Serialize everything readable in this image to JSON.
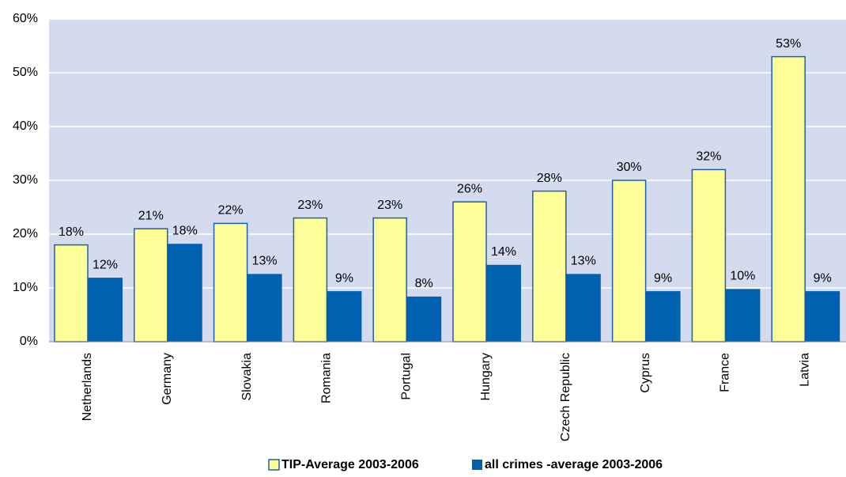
{
  "chart_data": {
    "type": "bar",
    "categories": [
      "Netherlands",
      "Germany",
      "Slovakia",
      "Romania",
      "Portugal",
      "Hungary",
      "Czech Republic",
      "Cyprus",
      "France",
      "Latvia"
    ],
    "series": [
      {
        "name": "TIP-Average 2003-2006",
        "color": "#ffff99",
        "values": [
          18,
          21,
          22,
          23,
          23,
          26,
          28,
          30,
          32,
          53
        ],
        "value_labels": [
          "18%",
          "21%",
          "22%",
          "23%",
          "23%",
          "26%",
          "28%",
          "30%",
          "32%",
          "53%"
        ]
      },
      {
        "name": "all crimes -average 2003-2006",
        "color": "#0061b0",
        "values": [
          11.9,
          18.2,
          12.6,
          9.4,
          8.4,
          14.3,
          12.6,
          9.4,
          9.8,
          9.4
        ],
        "value_labels": [
          "12%",
          "18%",
          "13%",
          "9%",
          "8%",
          "14%",
          "13%",
          "9%",
          "10%",
          "9%"
        ]
      }
    ],
    "ylim": [
      0,
      60
    ],
    "yticks": [
      {
        "value": 0,
        "label": "0%"
      },
      {
        "value": 10,
        "label": "10%"
      },
      {
        "value": 20,
        "label": "20%"
      },
      {
        "value": 30,
        "label": "30%"
      },
      {
        "value": 40,
        "label": "40%"
      },
      {
        "value": 50,
        "label": "50%"
      },
      {
        "value": 60,
        "label": "60%"
      }
    ],
    "grid": true,
    "legend": "bottom"
  }
}
